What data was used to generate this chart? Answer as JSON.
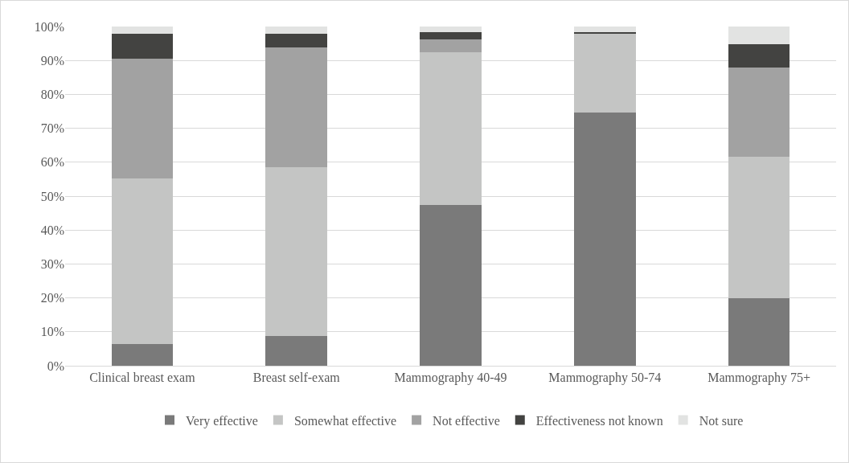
{
  "chart_data": {
    "type": "bar",
    "stacked": true,
    "categories": [
      "Clinical breast exam",
      "Breast self-exam",
      "Mammography 40-49",
      "Mammography 50-74",
      "Mammography 75+"
    ],
    "series": [
      {
        "name": "Very effective",
        "color": "#7a7a7a",
        "values": [
          6.4,
          8.8,
          47.4,
          74.6,
          20.0
        ]
      },
      {
        "name": "Somewhat effective",
        "color": "#c4c5c4",
        "values": [
          48.9,
          49.8,
          44.9,
          23.3,
          41.5
        ]
      },
      {
        "name": "Not effective",
        "color": "#a2a2a2",
        "values": [
          35.3,
          35.3,
          4.0,
          0.1,
          26.3
        ]
      },
      {
        "name": "Effectiveness not known",
        "color": "#434341",
        "values": [
          7.3,
          4.0,
          2.1,
          0.4,
          6.9
        ]
      },
      {
        "name": "Not sure",
        "color": "#e2e3e2",
        "values": [
          2.1,
          2.1,
          1.6,
          1.7,
          5.3
        ]
      }
    ],
    "ylim": [
      0,
      100
    ],
    "yticks": [
      {
        "value": 0,
        "label": "0%"
      },
      {
        "value": 10,
        "label": "10%"
      },
      {
        "value": 20,
        "label": "20%"
      },
      {
        "value": 30,
        "label": "30%"
      },
      {
        "value": 40,
        "label": "40%"
      },
      {
        "value": 50,
        "label": "50%"
      },
      {
        "value": 60,
        "label": "60%"
      },
      {
        "value": 70,
        "label": "70%"
      },
      {
        "value": 80,
        "label": "80%"
      },
      {
        "value": 90,
        "label": "90%"
      },
      {
        "value": 100,
        "label": "100%"
      }
    ],
    "grid": "y",
    "legend": "bottom"
  }
}
